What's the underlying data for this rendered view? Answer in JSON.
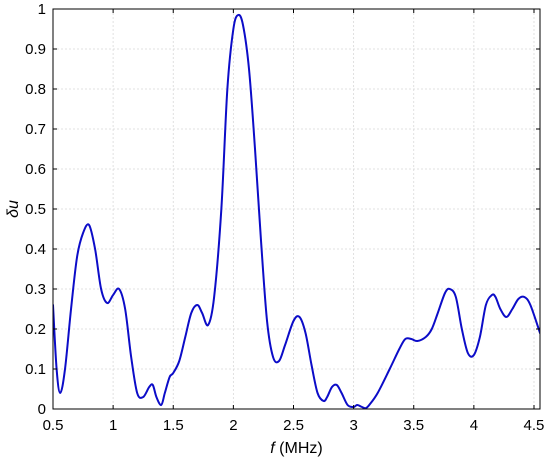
{
  "chart_data": {
    "type": "line",
    "title": "",
    "xlabel_italic": "f",
    "xlabel_unit": " (MHz)",
    "ylabel_italic": "δu",
    "xlim": [
      0.5,
      4.55
    ],
    "ylim": [
      0,
      1
    ],
    "xticks": [
      0.5,
      1,
      1.5,
      2,
      2.5,
      3,
      3.5,
      4,
      4.5
    ],
    "xtick_labels": [
      "0.5",
      "1",
      "1.5",
      "2",
      "2.5",
      "3",
      "3.5",
      "4",
      "4.5"
    ],
    "yticks": [
      0,
      0.1,
      0.2,
      0.3,
      0.4,
      0.5,
      0.6,
      0.7,
      0.8,
      0.9,
      1
    ],
    "ytick_labels": [
      "0",
      "0.1",
      "0.2",
      "0.3",
      "0.4",
      "0.5",
      "0.6",
      "0.7",
      "0.8",
      "0.9",
      "1"
    ],
    "grid": true,
    "line_color": "#0c0cc8",
    "series": [
      {
        "x": [
          0.5,
          0.53,
          0.56,
          0.6,
          0.65,
          0.7,
          0.75,
          0.8,
          0.85,
          0.9,
          0.95,
          1.0,
          1.05,
          1.1,
          1.15,
          1.2,
          1.25,
          1.3,
          1.33,
          1.36,
          1.4,
          1.43,
          1.47,
          1.5,
          1.55,
          1.6,
          1.65,
          1.7,
          1.74,
          1.79,
          1.84,
          1.9,
          1.95,
          2.0,
          2.04,
          2.08,
          2.13,
          2.18,
          2.23,
          2.28,
          2.33,
          2.38,
          2.43,
          2.5,
          2.55,
          2.6,
          2.65,
          2.7,
          2.75,
          2.78,
          2.82,
          2.86,
          2.9,
          2.95,
          3.0,
          3.03,
          3.07,
          3.1,
          3.13,
          3.2,
          3.3,
          3.38,
          3.43,
          3.48,
          3.53,
          3.6,
          3.65,
          3.7,
          3.76,
          3.8,
          3.85,
          3.9,
          3.95,
          4.0,
          4.05,
          4.1,
          4.15,
          4.18,
          4.22,
          4.27,
          4.32,
          4.37,
          4.42,
          4.47,
          4.55
        ],
        "y": [
          0.26,
          0.1,
          0.04,
          0.1,
          0.25,
          0.38,
          0.44,
          0.46,
          0.4,
          0.3,
          0.265,
          0.285,
          0.3,
          0.25,
          0.13,
          0.04,
          0.03,
          0.055,
          0.06,
          0.03,
          0.01,
          0.04,
          0.08,
          0.09,
          0.12,
          0.18,
          0.24,
          0.26,
          0.24,
          0.21,
          0.28,
          0.5,
          0.8,
          0.95,
          0.985,
          0.96,
          0.85,
          0.65,
          0.42,
          0.22,
          0.13,
          0.12,
          0.16,
          0.22,
          0.23,
          0.19,
          0.11,
          0.04,
          0.02,
          0.03,
          0.055,
          0.06,
          0.04,
          0.01,
          0.005,
          0.01,
          0.005,
          0.002,
          0.01,
          0.04,
          0.1,
          0.15,
          0.175,
          0.175,
          0.17,
          0.18,
          0.2,
          0.24,
          0.29,
          0.3,
          0.28,
          0.2,
          0.14,
          0.135,
          0.18,
          0.26,
          0.285,
          0.28,
          0.25,
          0.23,
          0.25,
          0.275,
          0.28,
          0.26,
          0.19
        ]
      }
    ]
  }
}
